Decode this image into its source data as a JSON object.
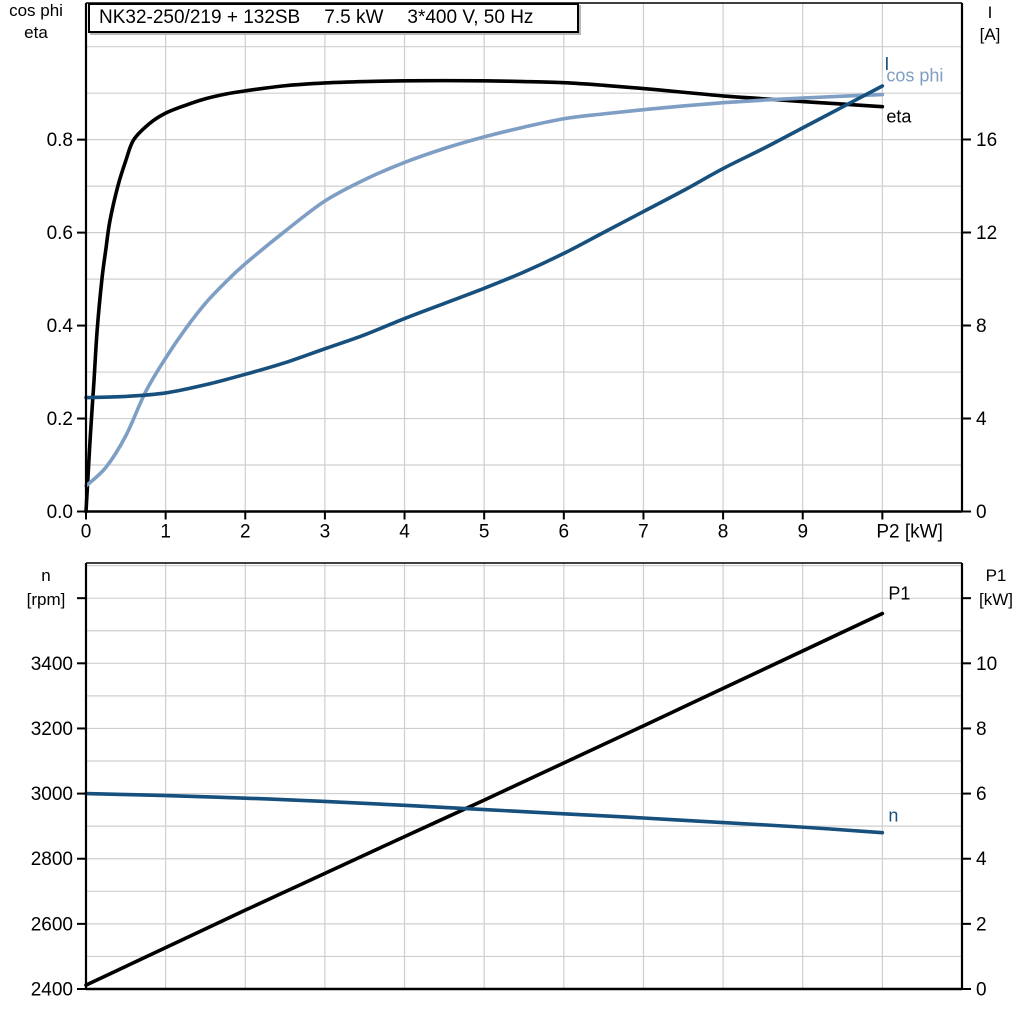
{
  "title_parts": [
    "NK32-250/219 + 132SB",
    "7.5 kW",
    "3*400 V, 50 Hz"
  ],
  "colors": {
    "black_series": "#000000",
    "light_blue_series": "#7E9EC4",
    "dark_blue_series": "#17507D",
    "grid": "#cfcfcf",
    "frame": "#000000",
    "background": "#ffffff"
  },
  "chart_data": [
    {
      "type": "line",
      "title": "NK32-250/219 + 132SB  7.5 kW  3*400 V, 50 Hz",
      "x_axis": {
        "label": "P2 [kW]",
        "lim": [
          0,
          11
        ],
        "tick_values": [
          0,
          1,
          2,
          3,
          4,
          5,
          6,
          7,
          8,
          9,
          10
        ],
        "tick_labels": [
          "0",
          "1",
          "2",
          "3",
          "4",
          "5",
          "6",
          "7",
          "8",
          "9",
          "P2 [kW]"
        ],
        "grid_values": [
          1,
          2,
          3,
          4,
          5,
          6,
          7,
          8,
          9,
          10
        ]
      },
      "y_left": {
        "title_lines": [
          "cos phi",
          "eta"
        ],
        "lim": [
          0,
          1.094
        ],
        "tick_values": [
          0.0,
          0.2,
          0.4,
          0.6,
          0.8
        ],
        "tick_labels": [
          "0.0",
          "0.2",
          "0.4",
          "0.6",
          "0.8"
        ],
        "grid_min": 0.1,
        "grid_max": 1.0,
        "grid_step": 0.1
      },
      "y_right": {
        "title_lines": [
          "I",
          "[A]"
        ],
        "lim": [
          0,
          21.87
        ],
        "tick_values": [
          0,
          4,
          8,
          12,
          16
        ],
        "tick_labels": [
          "0",
          "4",
          "8",
          "12",
          "16"
        ]
      },
      "series": [
        {
          "name": "eta",
          "label": "eta",
          "axis": "left",
          "color": "#000000",
          "points": [
            [
              0,
              0
            ],
            [
              0.02,
              0.06
            ],
            [
              0.05,
              0.15
            ],
            [
              0.08,
              0.23
            ],
            [
              0.1,
              0.28
            ],
            [
              0.14,
              0.39
            ],
            [
              0.2,
              0.5
            ],
            [
              0.25,
              0.565
            ],
            [
              0.3,
              0.625
            ],
            [
              0.4,
              0.7
            ],
            [
              0.5,
              0.755
            ],
            [
              0.6,
              0.8
            ],
            [
              0.8,
              0.835
            ],
            [
              1,
              0.857
            ],
            [
              1.25,
              0.874
            ],
            [
              1.5,
              0.888
            ],
            [
              1.75,
              0.898
            ],
            [
              2,
              0.905
            ],
            [
              2.5,
              0.916
            ],
            [
              3,
              0.922
            ],
            [
              3.5,
              0.925
            ],
            [
              4,
              0.9265
            ],
            [
              4.5,
              0.927
            ],
            [
              5,
              0.9265
            ],
            [
              5.5,
              0.925
            ],
            [
              6,
              0.9225
            ],
            [
              6.5,
              0.917
            ],
            [
              7,
              0.91
            ],
            [
              7.5,
              0.902
            ],
            [
              8,
              0.894
            ],
            [
              8.5,
              0.888
            ],
            [
              9,
              0.882
            ],
            [
              9.5,
              0.8765
            ],
            [
              10,
              0.871
            ]
          ]
        },
        {
          "name": "cos phi",
          "label": "cos phi",
          "axis": "left",
          "color": "#7E9EC4",
          "points": [
            [
              0,
              0.055
            ],
            [
              0.25,
              0.095
            ],
            [
              0.5,
              0.163
            ],
            [
              0.75,
              0.258
            ],
            [
              1,
              0.33
            ],
            [
              1.25,
              0.393
            ],
            [
              1.5,
              0.448
            ],
            [
              1.75,
              0.493
            ],
            [
              2,
              0.533
            ],
            [
              2.5,
              0.603
            ],
            [
              3,
              0.668
            ],
            [
              3.5,
              0.714
            ],
            [
              4,
              0.751
            ],
            [
              4.5,
              0.781
            ],
            [
              5,
              0.806
            ],
            [
              5.5,
              0.827
            ],
            [
              6,
              0.845
            ],
            [
              6.5,
              0.8555
            ],
            [
              7,
              0.8645
            ],
            [
              7.5,
              0.8725
            ],
            [
              8,
              0.8795
            ],
            [
              8.5,
              0.885
            ],
            [
              9,
              0.8895
            ],
            [
              9.5,
              0.8935
            ],
            [
              10,
              0.897
            ]
          ]
        },
        {
          "name": "I",
          "label": "I",
          "axis": "right",
          "color": "#17507D",
          "points": [
            [
              0,
              4.9
            ],
            [
              0.5,
              4.95
            ],
            [
              1,
              5.1
            ],
            [
              1.5,
              5.45
            ],
            [
              2,
              5.9
            ],
            [
              2.5,
              6.4
            ],
            [
              3,
              7.0
            ],
            [
              3.5,
              7.6
            ],
            [
              4,
              8.3
            ],
            [
              4.5,
              8.95
            ],
            [
              5,
              9.6
            ],
            [
              5.5,
              10.3
            ],
            [
              6,
              11.1
            ],
            [
              6.5,
              12.0
            ],
            [
              7,
              12.9
            ],
            [
              7.5,
              13.8
            ],
            [
              8,
              14.75
            ],
            [
              8.5,
              15.6
            ],
            [
              9,
              16.5
            ],
            [
              9.5,
              17.4
            ],
            [
              10,
              18.3
            ]
          ]
        }
      ]
    },
    {
      "type": "line",
      "title": "",
      "x_axis": {
        "label": "",
        "lim": [
          0,
          11
        ],
        "tick_values": [],
        "tick_labels": [],
        "grid_values": [
          1,
          2,
          3,
          4,
          5,
          6,
          7,
          8,
          9,
          10
        ]
      },
      "y_left": {
        "title_lines": [
          "n",
          "[rpm]"
        ],
        "lim": [
          2400,
          3708
        ],
        "tick_values": [
          2400,
          2600,
          2800,
          3000,
          3200,
          3400,
          3600
        ],
        "tick_labels": [
          "2400",
          "2600",
          "2800",
          "3000",
          "3200",
          "3400",
          ""
        ],
        "grid_min": 2500,
        "grid_max": 3700,
        "grid_step": 100
      },
      "y_right": {
        "title_lines": [
          "P1",
          "[kW]"
        ],
        "lim": [
          0,
          13.08
        ],
        "tick_values": [
          0,
          2,
          4,
          6,
          8,
          10,
          12
        ],
        "tick_labels": [
          "0",
          "2",
          "4",
          "6",
          "8",
          "10",
          ""
        ]
      },
      "series": [
        {
          "name": "P1",
          "label": "P1",
          "axis": "right",
          "color": "#000000",
          "points": [
            [
              0,
              0.12
            ],
            [
              1,
              1.27
            ],
            [
              2,
              2.42
            ],
            [
              3,
              3.55
            ],
            [
              4,
              4.68
            ],
            [
              5,
              5.8
            ],
            [
              6,
              6.94
            ],
            [
              7,
              8.08
            ],
            [
              8,
              9.23
            ],
            [
              9,
              10.38
            ],
            [
              10,
              11.53
            ]
          ]
        },
        {
          "name": "n",
          "label": "n",
          "axis": "left",
          "color": "#17507D",
          "points": [
            [
              0,
              3000
            ],
            [
              0.5,
              2997
            ],
            [
              1,
              2994
            ],
            [
              2,
              2986
            ],
            [
              3,
              2976
            ],
            [
              4,
              2964
            ],
            [
              5,
              2951
            ],
            [
              6,
              2938
            ],
            [
              7,
              2925
            ],
            [
              8,
              2911
            ],
            [
              9,
              2897
            ],
            [
              10,
              2880
            ]
          ]
        }
      ]
    }
  ]
}
